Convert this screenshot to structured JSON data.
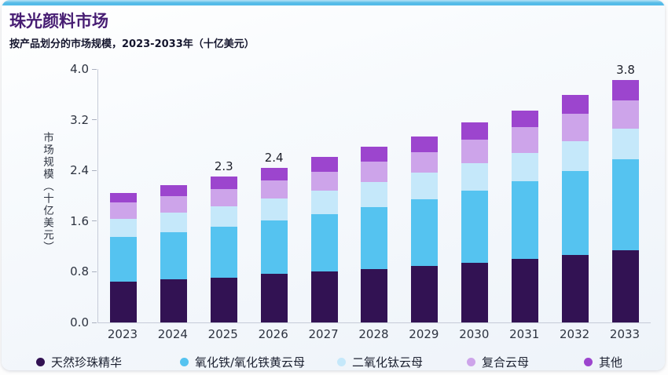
{
  "card": {
    "accent_color": "#54bbe8"
  },
  "header": {
    "title": "珠光颜料市场",
    "subtitle": "按产品划分的市场规模，2023-2033年（十亿美元）"
  },
  "chart_data": {
    "type": "bar",
    "stacked": true,
    "title": "珠光颜料市场",
    "subtitle": "按产品划分的市场规模，2023-2033年（十亿美元）",
    "categories": [
      "2023",
      "2024",
      "2025",
      "2026",
      "2027",
      "2028",
      "2029",
      "2030",
      "2031",
      "2032",
      "2033"
    ],
    "series": [
      {
        "name": "天然珍珠精华",
        "color": "#321253",
        "values": [
          0.65,
          0.68,
          0.71,
          0.77,
          0.8,
          0.84,
          0.89,
          0.94,
          1.0,
          1.07,
          1.14
        ]
      },
      {
        "name": "氧化铁/氧化铁黄云母",
        "color": "#55c3f0",
        "values": [
          0.7,
          0.75,
          0.8,
          0.84,
          0.91,
          0.98,
          1.06,
          1.14,
          1.23,
          1.32,
          1.43
        ]
      },
      {
        "name": "二氧化钛云母",
        "color": "#c5e8fa",
        "values": [
          0.28,
          0.31,
          0.33,
          0.35,
          0.37,
          0.4,
          0.41,
          0.43,
          0.44,
          0.47,
          0.49
        ]
      },
      {
        "name": "复合云母",
        "color": "#cda4ea",
        "values": [
          0.26,
          0.25,
          0.27,
          0.28,
          0.3,
          0.32,
          0.33,
          0.38,
          0.41,
          0.43,
          0.44
        ]
      },
      {
        "name": "其他",
        "color": "#9c45ce",
        "values": [
          0.16,
          0.18,
          0.19,
          0.2,
          0.23,
          0.23,
          0.25,
          0.27,
          0.27,
          0.3,
          0.33
        ]
      }
    ],
    "totals": [
      2.05,
      2.17,
      2.3,
      2.44,
      2.61,
      2.77,
      2.94,
      3.16,
      3.35,
      3.59,
      3.83
    ],
    "bar_total_labels": [
      null,
      null,
      "2.3",
      "2.4",
      null,
      null,
      null,
      null,
      null,
      null,
      "3.8"
    ],
    "ylabel": "市场规模（十亿美元）",
    "xlabel": "",
    "yticks": [
      4.0,
      3.2,
      2.4,
      1.6,
      0.8,
      0.0
    ],
    "ylim": [
      0,
      4.0
    ],
    "grid": false,
    "legend_position": "bottom"
  }
}
